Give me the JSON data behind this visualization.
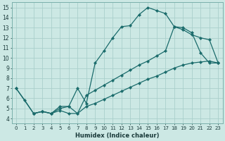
{
  "xlabel": "Humidex (Indice chaleur)",
  "bg_color": "#cce8e4",
  "grid_color": "#aacfcb",
  "line_color": "#1a6b6b",
  "xlim": [
    -0.5,
    23.5
  ],
  "ylim": [
    3.5,
    15.5
  ],
  "xticks": [
    0,
    1,
    2,
    3,
    4,
    5,
    6,
    7,
    8,
    9,
    10,
    11,
    12,
    13,
    14,
    15,
    16,
    17,
    18,
    19,
    20,
    21,
    22,
    23
  ],
  "yticks": [
    4,
    5,
    6,
    7,
    8,
    9,
    10,
    11,
    12,
    13,
    14,
    15
  ],
  "curve1_x": [
    0,
    1,
    2,
    3,
    4,
    5,
    6,
    7,
    8,
    9,
    10,
    11,
    12,
    13,
    14,
    15,
    16,
    17,
    18,
    19,
    20,
    21,
    22,
    23
  ],
  "curve1_y": [
    7.0,
    5.8,
    4.5,
    4.7,
    4.5,
    5.2,
    5.2,
    7.0,
    5.5,
    9.5,
    10.7,
    12.0,
    13.1,
    13.2,
    14.3,
    15.0,
    14.7,
    14.4,
    13.1,
    13.0,
    12.5,
    10.5,
    9.5,
    9.5
  ],
  "curve2_x": [
    0,
    2,
    3,
    4,
    5,
    6,
    7,
    8,
    9,
    10,
    11,
    12,
    13,
    14,
    15,
    16,
    17,
    18,
    19,
    20,
    21,
    22,
    23
  ],
  "curve2_y": [
    7.0,
    4.5,
    4.7,
    4.5,
    5.0,
    5.2,
    4.5,
    6.3,
    6.8,
    7.3,
    7.8,
    8.3,
    8.8,
    9.3,
    9.7,
    10.2,
    10.7,
    13.1,
    12.8,
    12.3,
    12.0,
    11.8,
    9.5
  ],
  "curve3_x": [
    2,
    3,
    4,
    5,
    6,
    7,
    8,
    9,
    10,
    11,
    12,
    13,
    14,
    15,
    16,
    17,
    18,
    19,
    20,
    21,
    22,
    23
  ],
  "curve3_y": [
    4.5,
    4.7,
    4.5,
    4.8,
    4.5,
    4.5,
    5.2,
    5.5,
    5.9,
    6.3,
    6.7,
    7.1,
    7.5,
    7.9,
    8.2,
    8.6,
    9.0,
    9.3,
    9.5,
    9.6,
    9.7,
    9.5
  ]
}
